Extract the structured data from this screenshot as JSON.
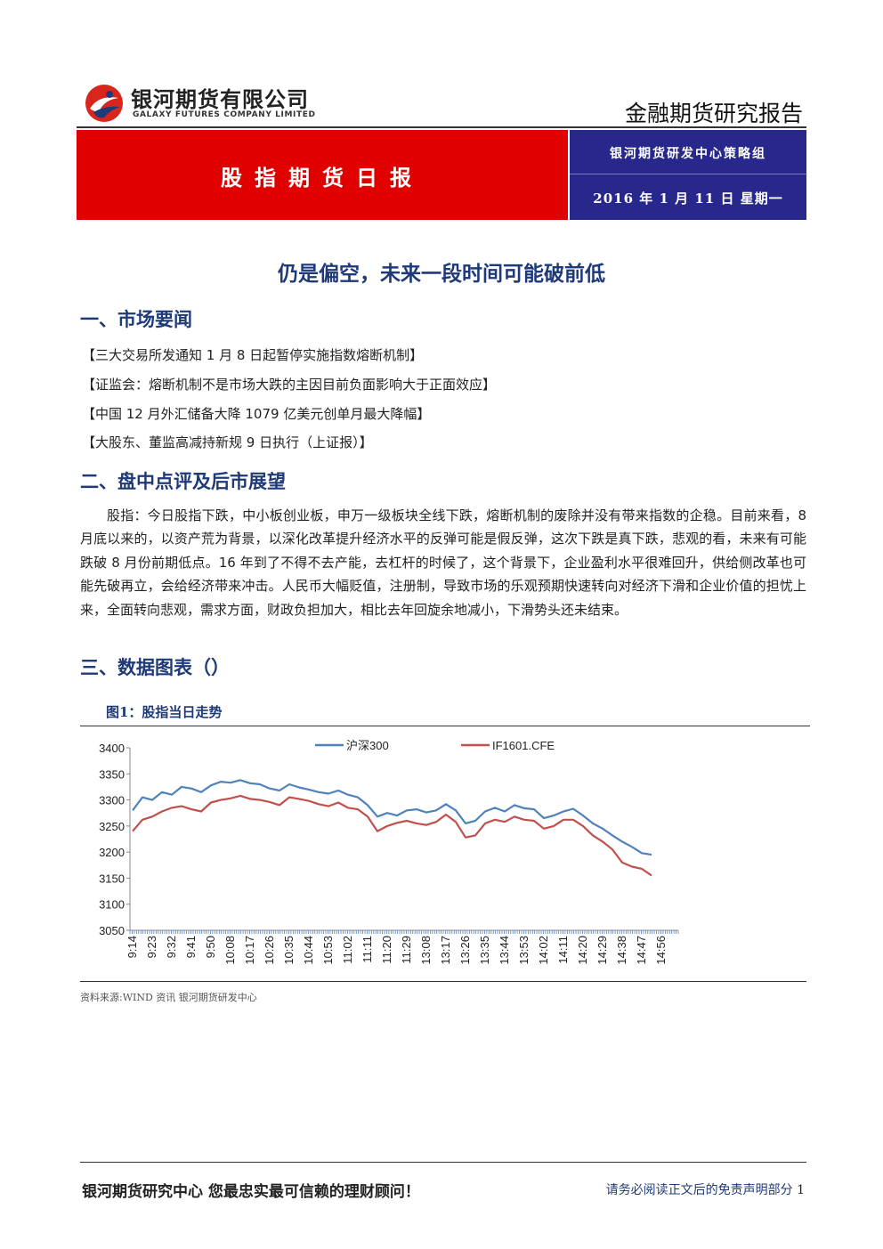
{
  "header": {
    "company_cn": "银河期货有限公司",
    "company_en": "GALAXY FUTURES COMPANY LIMITED",
    "report_type": "金融期货研究报告",
    "report_title": "股指期货日报",
    "group": "银河期货研发中心策略组",
    "date": "2016 年 1 月 11 日  星期一",
    "colors": {
      "red_band": "#e00000",
      "blue_band": "#28288c",
      "heading": "#1f3a78"
    }
  },
  "headline": "仍是偏空，未来一段时间可能破前低",
  "sections": {
    "s1": "一、市场要闻",
    "s2": "二、盘中点评及后市展望",
    "s3": "三、数据图表（）"
  },
  "news": [
    "【三大交易所发通知 1 月 8 日起暂停实施指数熔断机制】",
    "【证监会：熔断机制不是市场大跌的主因目前负面影响大于正面效应】",
    "【中国 12 月外汇储备大降 1079 亿美元创单月最大降幅】",
    "【大股东、董监高减持新规 9 日执行（上证报）】"
  ],
  "commentary": "股指：今日股指下跌，中小板创业板，申万一级板块全线下跌，熔断机制的废除并没有带来指数的企稳。目前来看，8 月底以来的，以资产荒为背景，以深化改革提升经济水平的反弹可能是假反弹，这次下跌是真下跌，悲观的看，未来有可能跌破 8 月份前期低点。16 年到了不得不去产能，去杠杆的时候了，这个背景下，企业盈利水平很难回升，供给侧改革也可能先破再立，会给经济带来冲击。人民币大幅贬值，注册制，导致市场的乐观预期快速转向对经济下滑和企业价值的担忧上来，全面转向悲观，需求方面，财政负担加大，相比去年回旋余地减小，下滑势头还未结束。",
  "figure": {
    "title": "图1：股指当日走势",
    "source": "资料来源:WIND 资讯   银河期货研发中心"
  },
  "chart_data": {
    "type": "line",
    "title": "",
    "xlabel": "",
    "ylabel": "",
    "ylim": [
      3050,
      3400
    ],
    "yticks": [
      3050,
      3100,
      3150,
      3200,
      3250,
      3300,
      3350,
      3400
    ],
    "xtick_labels": [
      "9:14",
      "9:23",
      "9:32",
      "9:41",
      "9:50",
      "10:08",
      "10:17",
      "10:26",
      "10:35",
      "10:44",
      "10:53",
      "11:02",
      "11:11",
      "11:20",
      "11:29",
      "13:08",
      "13:17",
      "13:26",
      "13:35",
      "13:44",
      "13:53",
      "14:02",
      "14:11",
      "14:20",
      "14:29",
      "14:38",
      "14:47",
      "14:56"
    ],
    "grid": false,
    "legend": "top",
    "series": [
      {
        "name": "沪深300",
        "color": "#4f81bd",
        "x_index": [
          0,
          0.5,
          1,
          1.5,
          2,
          2.5,
          3,
          3.5,
          4,
          4.5,
          5,
          5.5,
          6,
          6.5,
          7,
          7.5,
          8,
          8.5,
          9,
          9.5,
          10,
          10.5,
          11,
          11.5,
          12,
          12.5,
          13,
          13.5,
          14,
          14.5,
          15,
          15.5,
          16,
          16.5,
          17,
          17.5,
          18,
          18.5,
          19,
          19.5,
          20,
          20.5,
          21,
          21.5,
          22,
          22.5,
          23,
          23.5,
          24,
          24.5,
          25,
          25.5,
          26,
          26.5
        ],
        "values": [
          3280,
          3305,
          3300,
          3315,
          3310,
          3325,
          3322,
          3315,
          3328,
          3335,
          3333,
          3338,
          3332,
          3330,
          3322,
          3318,
          3330,
          3324,
          3320,
          3315,
          3312,
          3318,
          3310,
          3305,
          3290,
          3268,
          3275,
          3270,
          3280,
          3282,
          3276,
          3280,
          3292,
          3280,
          3255,
          3260,
          3278,
          3285,
          3278,
          3290,
          3284,
          3282,
          3265,
          3270,
          3278,
          3283,
          3270,
          3255,
          3245,
          3232,
          3220,
          3210,
          3198,
          3195
        ]
      },
      {
        "name": "IF1601.CFE",
        "color": "#c0504d",
        "x_index": [
          0,
          0.5,
          1,
          1.5,
          2,
          2.5,
          3,
          3.5,
          4,
          4.5,
          5,
          5.5,
          6,
          6.5,
          7,
          7.5,
          8,
          8.5,
          9,
          9.5,
          10,
          10.5,
          11,
          11.5,
          12,
          12.5,
          13,
          13.5,
          14,
          14.5,
          15,
          15.5,
          16,
          16.5,
          17,
          17.5,
          18,
          18.5,
          19,
          19.5,
          20,
          20.5,
          21,
          21.5,
          22,
          22.5,
          23,
          23.5,
          24,
          24.5,
          25,
          25.5,
          26,
          26.5
        ],
        "values": [
          3240,
          3262,
          3268,
          3278,
          3285,
          3288,
          3282,
          3278,
          3295,
          3300,
          3303,
          3308,
          3302,
          3300,
          3296,
          3290,
          3305,
          3302,
          3298,
          3292,
          3288,
          3295,
          3285,
          3282,
          3268,
          3240,
          3250,
          3256,
          3260,
          3255,
          3252,
          3258,
          3272,
          3258,
          3228,
          3232,
          3255,
          3262,
          3258,
          3268,
          3262,
          3260,
          3245,
          3250,
          3262,
          3262,
          3250,
          3232,
          3220,
          3205,
          3180,
          3172,
          3168,
          3155
        ]
      }
    ]
  },
  "footer": {
    "left": "银河期货研究中心   您最忠实最可信赖的理财顾问！",
    "right": "请务必阅读正文后的免责声明部分",
    "page": "1"
  }
}
